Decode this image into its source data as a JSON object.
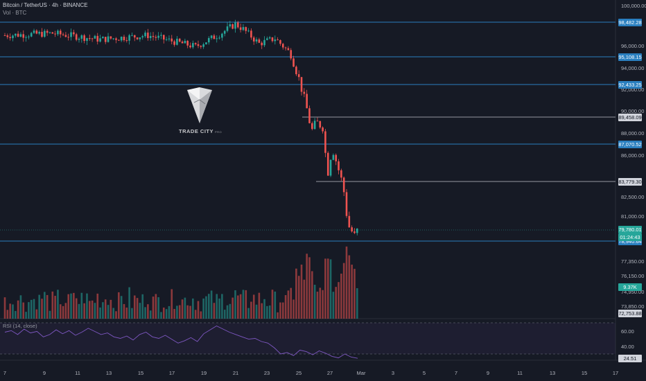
{
  "header": {
    "title": "Bitcoin / TetherUS · 4h · BINANCE",
    "volume_label": "Vol · BTC",
    "rsi_label": "RSI (14, close)"
  },
  "watermark": {
    "text": "TRADE CITY",
    "sub": "PRO"
  },
  "colors": {
    "background": "#161a25",
    "up": "#26a69a",
    "down": "#ef5350",
    "level_line": "#2a7fbf",
    "gray_level": "#9598a1",
    "rsi_line": "#7e57c2"
  },
  "chart_data": [
    {
      "type": "candlestick",
      "title": "Bitcoin / TetherUS · 4h · BINANCE",
      "x_tick_labels": [
        "7",
        "9",
        "11",
        "13",
        "15",
        "17",
        "19",
        "21",
        "23",
        "25",
        "27",
        "Mar",
        "3",
        "5",
        "7",
        "9",
        "11",
        "13",
        "15",
        "17"
      ],
      "y_tick_labels": [
        "100,000.00",
        "96,000.00",
        "94,000.00",
        "92,000.00",
        "90,000.00",
        "88,000.00",
        "86,000.00",
        "82,500.00",
        "81,000.00",
        "77,350.00",
        "76,150.00",
        "74,950.00",
        "73,850.00"
      ],
      "levels": [
        {
          "label": "98,482.28",
          "value": 98482.28,
          "color": "level"
        },
        {
          "label": "95,108.15",
          "value": 95108.15,
          "color": "level"
        },
        {
          "label": "92,433.25",
          "value": 92433.25,
          "color": "level"
        },
        {
          "label": "89,458.09",
          "value": 89458.09,
          "color": "gray"
        },
        {
          "label": "87,070.52",
          "value": 87070.52,
          "color": "level"
        },
        {
          "label": "83,779.30",
          "value": 83779.3,
          "color": "gray"
        },
        {
          "label": "78,940.64",
          "value": 78940.64,
          "color": "level"
        }
      ],
      "last_price": {
        "label": "79,780.01",
        "countdown": "01:24:43"
      },
      "volume_badge": "9.37K",
      "bottom_badge": "72,753.88",
      "series": [
        {
          "name": "price_path",
          "x": [
            0,
            3,
            6,
            9,
            12,
            15,
            18,
            19.5,
            20.5,
            21,
            22,
            23,
            24,
            24.5,
            25,
            25.3,
            25.6,
            26,
            26.3,
            26.6,
            27,
            27.3,
            27.6,
            28,
            28.2
          ],
          "values": [
            97000,
            97600,
            97200,
            97400,
            96800,
            97200,
            96100,
            97300,
            98300,
            97800,
            96400,
            96900,
            95400,
            93000,
            90200,
            88200,
            89000,
            88600,
            84400,
            86800,
            84800,
            83300,
            80200,
            79300,
            79780
          ]
        }
      ]
    },
    {
      "type": "line",
      "title": "RSI (14, close)",
      "y_tick_labels": [
        "60.00",
        "40.00"
      ],
      "current": "24.51",
      "band": [
        30,
        70
      ],
      "values": [
        58,
        60,
        55,
        62,
        57,
        59,
        52,
        55,
        61,
        56,
        60,
        54,
        58,
        63,
        59,
        55,
        57,
        52,
        50,
        53,
        48,
        55,
        58,
        52,
        50,
        54,
        49,
        44,
        47,
        51,
        46,
        56,
        61,
        66,
        62,
        58,
        55,
        52,
        49,
        50,
        46,
        44,
        38,
        30,
        32,
        28,
        35,
        33,
        29,
        34,
        31,
        27,
        25,
        30,
        26,
        24.5
      ]
    }
  ]
}
